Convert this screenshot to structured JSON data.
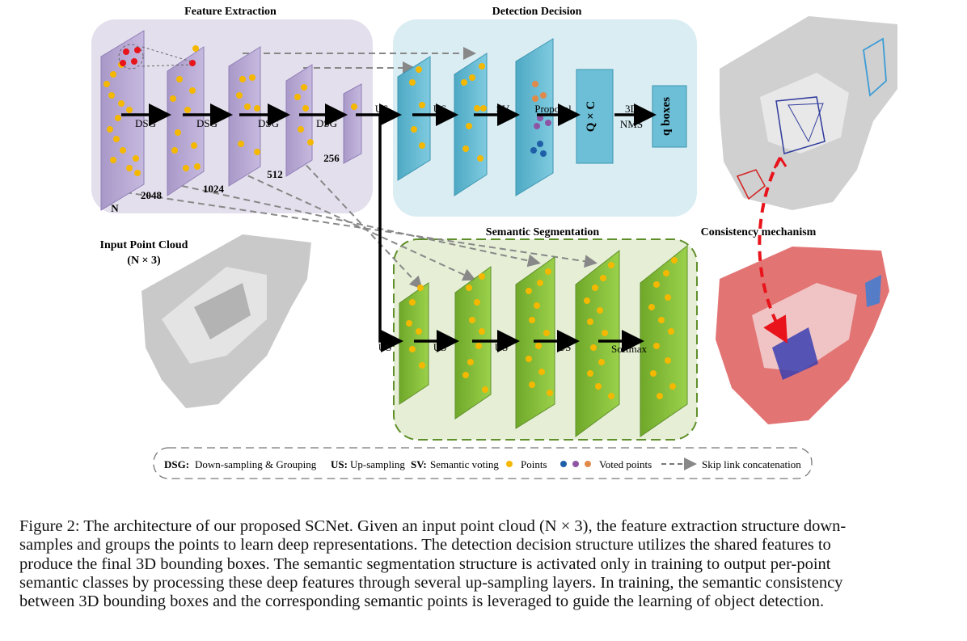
{
  "sections": {
    "feature_extraction": "Feature Extraction",
    "detection_decision": "Detection Decision",
    "semantic_segmentation": "Semantic Segmentation",
    "consistency_mechanism": "Consistency mechanism"
  },
  "input": {
    "title": "Input Point Cloud",
    "shape": "(N × 3)"
  },
  "ops": {
    "dsg": "DSG",
    "us": "US",
    "sv": "SV",
    "proposal": "Proposal",
    "nms_line1": "3D",
    "nms_line2": "NMS",
    "softmax": "Softmax",
    "qxc": "Q × C",
    "qboxes": "q boxes"
  },
  "layer_sizes": [
    "N",
    "2048",
    "1024",
    "512",
    "256"
  ],
  "legend": {
    "dsg_key": "DSG:",
    "dsg_text": "Down-sampling & Grouping",
    "us_key": "US:",
    "us_text": "Up-sampling",
    "sv_key": "SV:",
    "sv_text": "Semantic voting",
    "points": "Points",
    "voted_points": "Voted points",
    "skip_link": "Skip link concatenation"
  },
  "colors": {
    "feature_bg": "#e4dfec",
    "detection_bg": "#d9edf3",
    "segmentation_bg": "#e6efd6",
    "purple_layer": "#b6a5d2",
    "blue_layer": "#6cbfd6",
    "green_layer": "#8cc63f",
    "point_yellow": "#f5b800",
    "point_red": "#e8131b",
    "vote_blue": "#1f5fa8",
    "vote_purple": "#8e55a5",
    "vote_orange": "#e08a4a"
  },
  "caption": {
    "lines": [
      "Figure 2: The architecture of our proposed SCNet. Given an input point cloud (N × 3), the feature extraction structure down-",
      "samples and groups the points to learn deep representations. The detection decision structure utilizes the shared features to",
      "produce the final 3D bounding boxes. The semantic segmentation structure is activated only in training to output per-point",
      "semantic classes by processing these deep features through several up-sampling layers. In training, the semantic consistency",
      "between 3D bounding boxes and the corresponding semantic points is leveraged to guide the learning of object detection."
    ]
  }
}
